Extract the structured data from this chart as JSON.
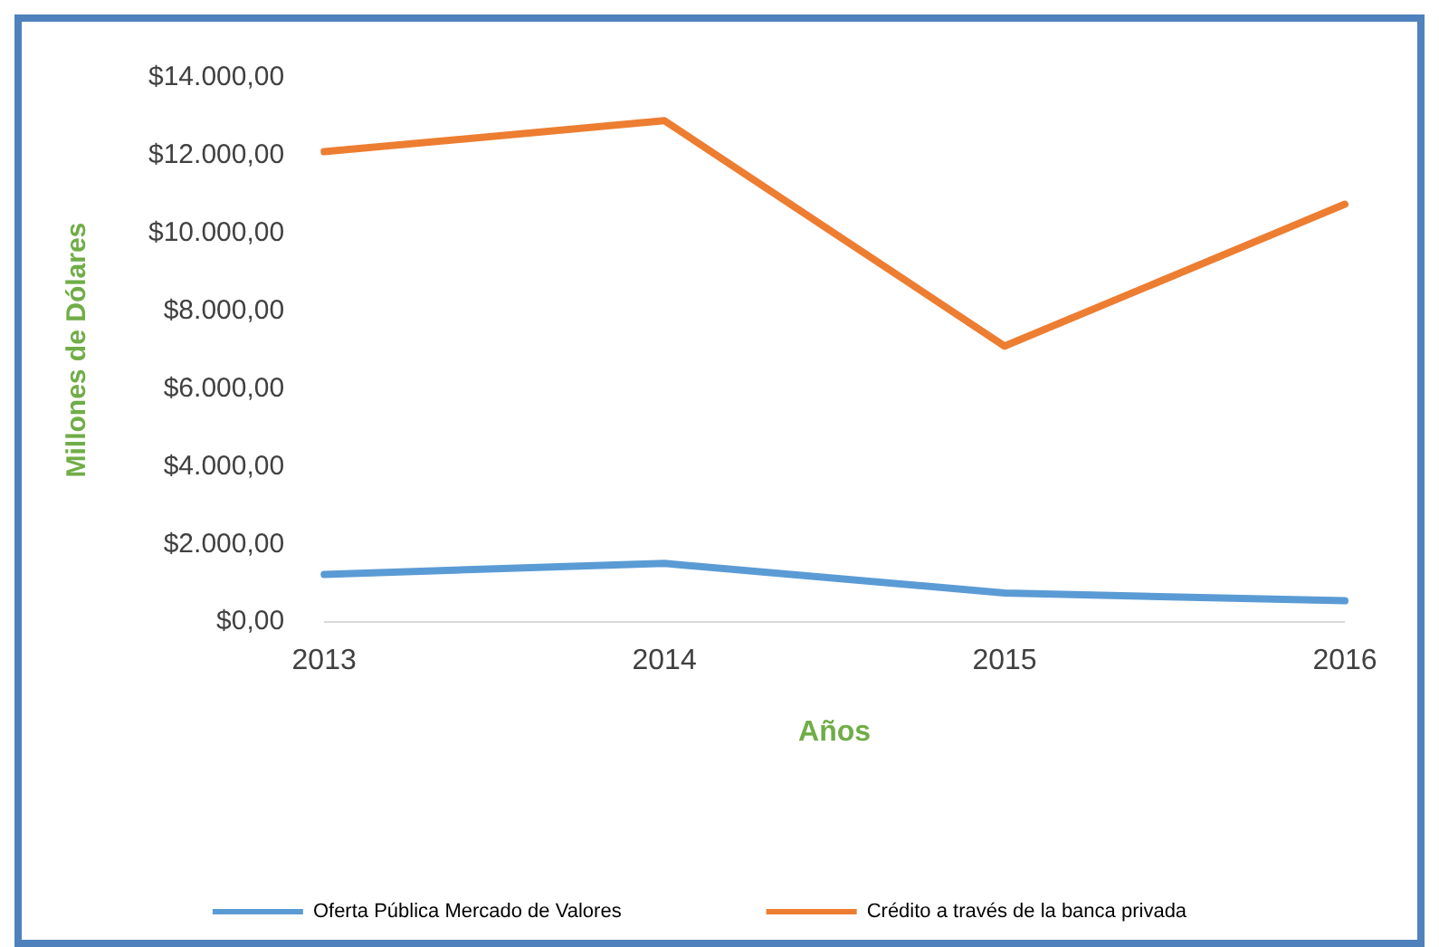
{
  "chart_data": {
    "type": "line",
    "xlabel": "Años",
    "ylabel": "Millones de Dólares",
    "categories": [
      "2013",
      "2014",
      "2015",
      "2016"
    ],
    "series": [
      {
        "name": "Oferta Pública Mercado de Valores",
        "color": "#5b9bd5",
        "values": [
          1230,
          1510,
          750,
          550
        ]
      },
      {
        "name": "Crédito a través de la banca privada",
        "color": "#ed7d31",
        "values": [
          12100,
          12900,
          7100,
          10750
        ]
      }
    ],
    "ylim": [
      0,
      14000
    ],
    "yticks": [
      {
        "value": 0,
        "label": "$0,00"
      },
      {
        "value": 2000,
        "label": "$2.000,00"
      },
      {
        "value": 4000,
        "label": "$4.000,00"
      },
      {
        "value": 6000,
        "label": "$6.000,00"
      },
      {
        "value": 8000,
        "label": "$8.000,00"
      },
      {
        "value": 10000,
        "label": "$10.000,00"
      },
      {
        "value": 12000,
        "label": "$12.000,00"
      },
      {
        "value": 14000,
        "label": "$14.000,00"
      }
    ],
    "grid": false,
    "legend": "bottom",
    "marker": "none",
    "line_style": "solid"
  }
}
